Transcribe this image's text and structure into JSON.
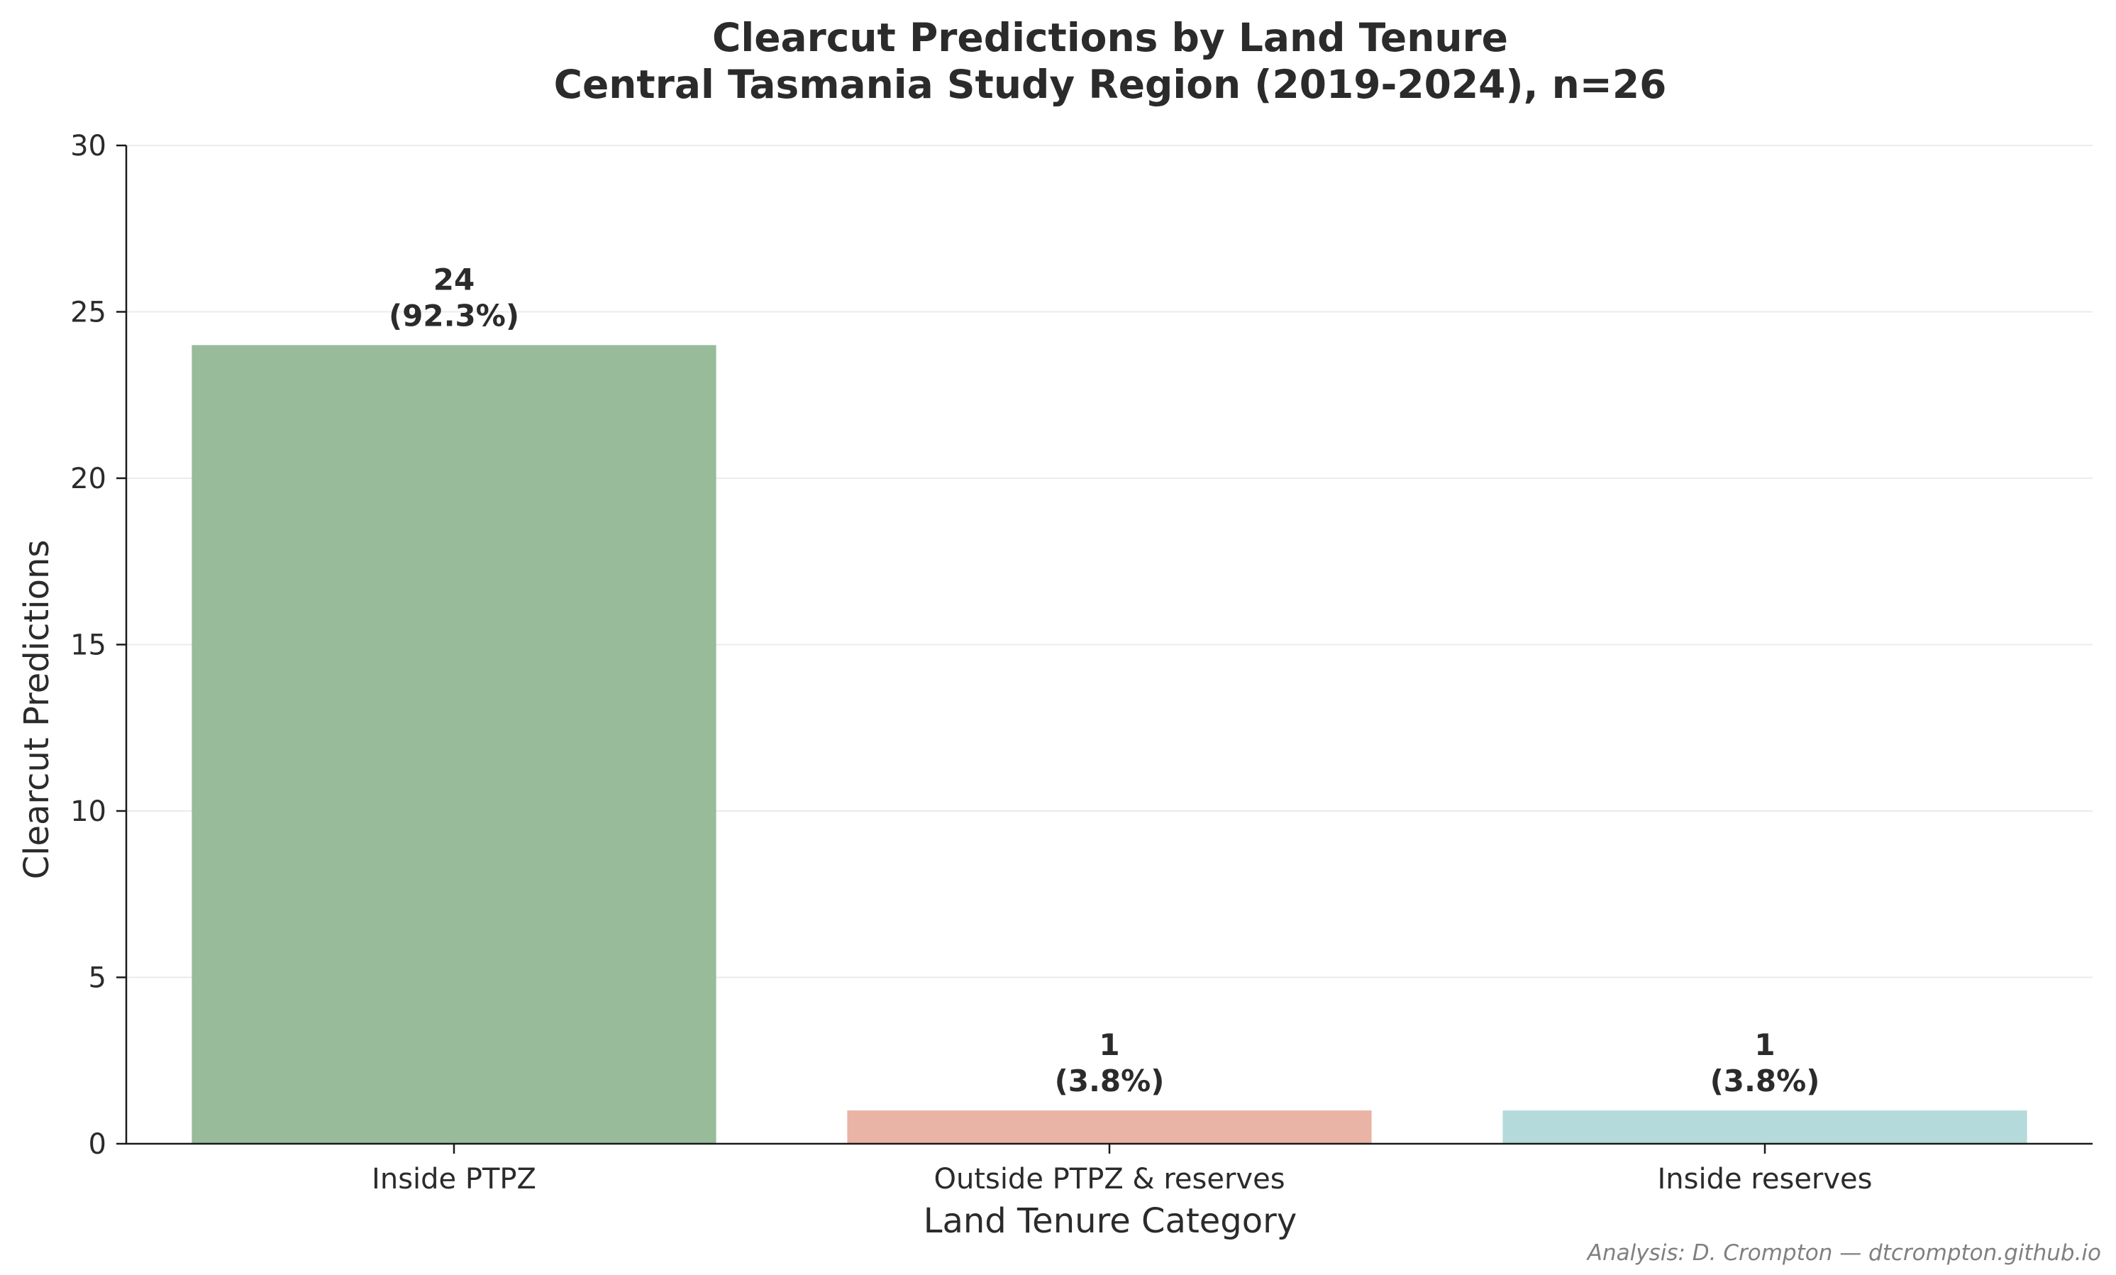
{
  "chart_data": {
    "type": "bar",
    "title": "Clearcut Predictions by Land Tenure",
    "subtitle": "Central Tasmania Study Region (2019-2024), n=26",
    "xlabel": "Land Tenure Category",
    "ylabel": "Clearcut Predictions",
    "categories": [
      "Inside PTPZ",
      "Outside PTPZ & reserves",
      "Inside reserves"
    ],
    "values": [
      24,
      1,
      1
    ],
    "value_labels": [
      "24",
      "1",
      "1"
    ],
    "percent_labels": [
      "(92.3%)",
      "(3.8%)",
      "(3.8%)"
    ],
    "colors": [
      "#98bb9a",
      "#e9b3a5",
      "#b5dadb"
    ],
    "ylim": [
      0,
      30
    ],
    "yticks": [
      0,
      5,
      10,
      15,
      20,
      25,
      30
    ],
    "ytick_labels": [
      "0",
      "5",
      "10",
      "15",
      "20",
      "25",
      "30"
    ],
    "grid": "horizontal",
    "legend": "none"
  },
  "credit": "Analysis: D. Crompton — dtcrompton.github.io"
}
